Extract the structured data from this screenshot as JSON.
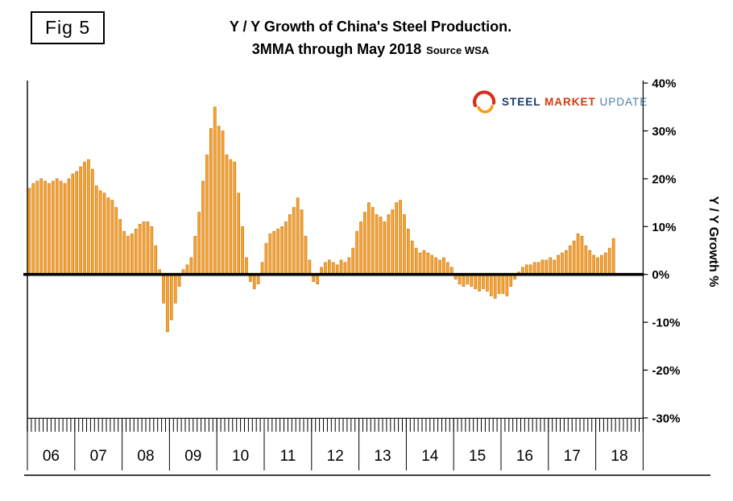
{
  "figure_label": "Fig 5",
  "title": {
    "line1": "Y / Y Growth of China's Steel Production.",
    "line2": "3MMA through May 2018",
    "source": "Source WSA"
  },
  "logo": {
    "word1": "STEEL",
    "word2": "MARKET",
    "word3": "UPDATE"
  },
  "y_axis_title": "Y / Y Growth %",
  "chart_data": {
    "type": "bar",
    "title": "Y / Y Growth of China's Steel Production. 3MMA through May 2018",
    "source": "WSA",
    "ylabel": "Y / Y Growth %",
    "unit": "percent",
    "ylim": [
      -30,
      40
    ],
    "grid": "off",
    "legend": "none",
    "zero_baseline": true,
    "bar_color": "#FBA330",
    "bar_edge_color": "#BE7414",
    "zero_line_color": "#000000",
    "y_ticks": [
      {
        "value": 40,
        "label": "40%"
      },
      {
        "value": 30,
        "label": "30%"
      },
      {
        "value": 20,
        "label": "20%"
      },
      {
        "value": 10,
        "label": "10%"
      },
      {
        "value": 0,
        "label": "0%"
      },
      {
        "value": -10,
        "label": "-10%"
      },
      {
        "value": -20,
        "label": "-20%"
      },
      {
        "value": -30,
        "label": "-30%"
      }
    ],
    "x_axis": {
      "year_labels": [
        "06",
        "07",
        "08",
        "09",
        "10",
        "11",
        "12",
        "13",
        "14",
        "15",
        "16",
        "17",
        "18"
      ],
      "months_per_year": 12,
      "last_month": "May 2018"
    },
    "series": [
      {
        "name": "China steel production Y/Y growth, 3MMA (%)",
        "years": [
          {
            "year": "06",
            "values": [
              18,
              19,
              19.5,
              20,
              19.5,
              19,
              19.5,
              20,
              19.5,
              19,
              20,
              21
            ]
          },
          {
            "year": "07",
            "values": [
              21.5,
              22.5,
              23.5,
              24,
              22,
              18.5,
              17.5,
              17,
              16,
              15.5,
              14,
              11.5
            ]
          },
          {
            "year": "08",
            "values": [
              9,
              8,
              8.5,
              9.5,
              10.5,
              11,
              11,
              10,
              6,
              1,
              -6,
              -12
            ]
          },
          {
            "year": "09",
            "values": [
              -9.5,
              -6,
              -2.5,
              1,
              2,
              3.5,
              8,
              13,
              19.5,
              25,
              30.5,
              35
            ]
          },
          {
            "year": "10",
            "values": [
              31,
              30,
              25,
              24,
              23.5,
              17,
              10,
              3.5,
              -1.5,
              -3,
              -2,
              2.5
            ]
          },
          {
            "year": "11",
            "values": [
              6.5,
              8.5,
              9,
              9.5,
              10,
              11,
              12.5,
              14,
              16,
              13.5,
              8,
              3
            ]
          },
          {
            "year": "12",
            "values": [
              -1.5,
              -2,
              1.5,
              2.5,
              3,
              2.5,
              2,
              3,
              2.5,
              3.5,
              5.5,
              9
            ]
          },
          {
            "year": "13",
            "values": [
              11,
              13,
              15,
              14,
              12.5,
              12,
              11,
              12.5,
              13.5,
              15,
              15.5,
              12.5
            ]
          },
          {
            "year": "14",
            "values": [
              9.5,
              7,
              5.5,
              4.5,
              5,
              4.5,
              4,
              3.5,
              3,
              3.5,
              2.5,
              1.5
            ]
          },
          {
            "year": "15",
            "values": [
              -1,
              -2,
              -2.5,
              -2,
              -2.5,
              -3,
              -3.5,
              -3,
              -3.5,
              -4.5,
              -5,
              -4
            ]
          },
          {
            "year": "16",
            "values": [
              -4,
              -4.5,
              -2.5,
              -1,
              0.5,
              1.5,
              2,
              2,
              2.5,
              2.5,
              3,
              3
            ]
          },
          {
            "year": "17",
            "values": [
              3.5,
              3,
              4,
              4.5,
              5,
              6,
              7,
              8.5,
              8,
              6,
              5,
              4
            ]
          },
          {
            "year": "18",
            "values": [
              3.5,
              4,
              4.5,
              5.5,
              7.5
            ]
          }
        ]
      }
    ]
  }
}
